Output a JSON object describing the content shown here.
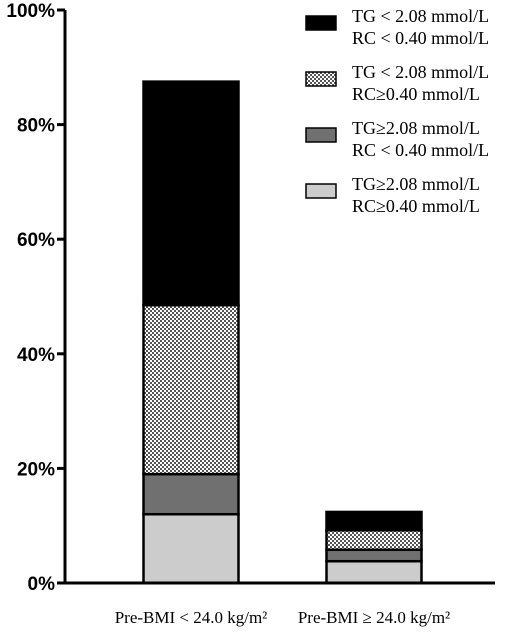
{
  "chart_data": {
    "type": "bar",
    "stacked": true,
    "categories": [
      "Pre-BMI < 24.0 kg/m²",
      "Pre-BMI ≥ 24.0 kg/m²"
    ],
    "series": [
      {
        "name_line1": "TG≥2.08 mmol/L",
        "name_line2": "RC≥0.40 mmol/L",
        "values": [
          12.0,
          3.8
        ],
        "color": "#cccccc",
        "pattern": "solid"
      },
      {
        "name_line1": "TG≥2.08 mmol/L",
        "name_line2": "RC < 0.40 mmol/L",
        "values": [
          7.0,
          2.0
        ],
        "color": "#707070",
        "pattern": "solid"
      },
      {
        "name_line1": "TG < 2.08 mmol/L",
        "name_line2": "RC≥0.40 mmol/L",
        "values": [
          29.5,
          3.4
        ],
        "color": "#888888",
        "pattern": "checker"
      },
      {
        "name_line1": "TG < 2.08 mmol/L",
        "name_line2": "RC < 0.40 mmol/L",
        "values": [
          39.0,
          3.2
        ],
        "color": "#000000",
        "pattern": "solid"
      }
    ],
    "legend_order": [
      3,
      2,
      1,
      0
    ],
    "yticks": [
      "0%",
      "20%",
      "40%",
      "60%",
      "80%",
      "100%"
    ],
    "ylim": [
      0,
      100
    ],
    "xlabel": "",
    "ylabel": "",
    "legend_position": "top-right",
    "grid": false
  }
}
